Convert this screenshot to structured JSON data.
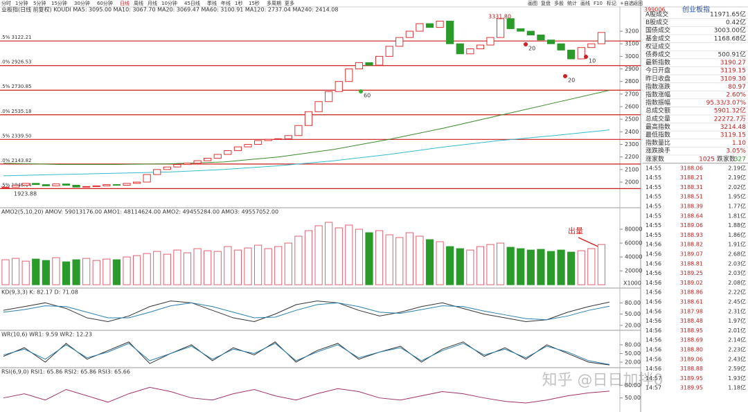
{
  "toolbar": {
    "left": [
      "分时",
      "1分钟",
      "5分钟",
      "15分钟",
      "30分钟",
      "60分钟",
      "日线",
      "周线",
      "月线",
      "10分钟",
      "45日线",
      "季线",
      "年线",
      "1秒",
      "15秒",
      "多周期",
      "更多"
    ],
    "right": [
      "画图",
      "复盘",
      "多股",
      "统计",
      "画线",
      "F10",
      "标记",
      "+自选",
      "返回"
    ]
  },
  "main": {
    "header": "业板指(日线 前复权) KOUDI MA5: 3095.00 MA10: 3067.70 MA20: 3069.47 MA60: 3100.91 MA120: 2737.04 MA240: 2414.08",
    "ylim": [
      1807,
      3338
    ],
    "yticks": [
      2000,
      2100,
      2200,
      2300,
      2400,
      2500,
      2600,
      2700,
      2800,
      2900,
      3000,
      3100,
      3200
    ],
    "fib": [
      {
        "label": ".5% 3122.21",
        "value": 3122.21
      },
      {
        "label": ".0% 2926.53",
        "value": 2926.53
      },
      {
        "label": ".5% 2730.85",
        "value": 2730.85
      },
      {
        "label": ".0% 2535.18",
        "value": 2535.18
      },
      {
        "label": ".5% 2339.50",
        "value": 2339.5
      },
      {
        "label": ".0% 2143.82",
        "value": 2143.82
      },
      {
        "label": ".5% 1948.14",
        "value": 1948.14
      }
    ],
    "closes": [
      1960,
      1975,
      1990,
      1980,
      1970,
      1985,
      1975,
      1960,
      1965,
      1970,
      1980,
      1975,
      1990,
      2000,
      2060,
      2100,
      2120,
      2140,
      2150,
      2170,
      2190,
      2220,
      2250,
      2280,
      2300,
      2330,
      2340,
      2345,
      2370,
      2450,
      2560,
      2640,
      2720,
      2800,
      2900,
      2950,
      2930,
      3000,
      3080,
      3150,
      3200,
      3260,
      3230,
      3280,
      3100,
      3020,
      3060,
      3090,
      3150,
      3300,
      3220,
      3200,
      3170,
      3130,
      3100,
      3050,
      2980,
      3070,
      3100,
      3190
    ],
    "ma_lines": [
      {
        "color": "#3a8a2a",
        "values": [
          2150,
          2140,
          2140,
          2145,
          2160,
          2200,
          2260,
          2340,
          2430,
          2530,
          2630,
          2730
        ]
      },
      {
        "color": "#33bbcc",
        "values": [
          2050,
          2060,
          2070,
          2080,
          2100,
          2130,
          2170,
          2220,
          2280,
          2330,
          2370,
          2415
        ]
      }
    ],
    "high_label": "3331.80",
    "low_label": "1923.88",
    "marks": [
      "60",
      "20",
      "20",
      "10"
    ]
  },
  "volume": {
    "header": "AMO2(5,10,20) AMOV: 59013176.00 AMO1: 48114624.00 AMO2: 49455284.00 AMO3: 49557052.00",
    "unit": "X1000",
    "note": "出量",
    "ylim": [
      -3800,
      99000
    ],
    "yticks": [
      20000,
      40000,
      60000,
      80000
    ],
    "values": [
      36000,
      38000,
      34000,
      37000,
      35000,
      39000,
      33000,
      36000,
      38000,
      35000,
      37000,
      36000,
      40000,
      42000,
      45000,
      48000,
      44000,
      50000,
      46000,
      52000,
      49000,
      48000,
      55000,
      50000,
      53000,
      57000,
      52000,
      55000,
      60000,
      70000,
      78000,
      85000,
      90000,
      82000,
      86000,
      80000,
      75000,
      78000,
      72000,
      68000,
      75000,
      70000,
      65000,
      62000,
      55000,
      52000,
      50000,
      55000,
      58000,
      60000,
      54000,
      52000,
      50000,
      51000,
      48000,
      50000,
      47000,
      49000,
      52000,
      58000
    ]
  },
  "indicators": [
    {
      "header": "KD(9,3,3) K: 82.17 D: 71.08",
      "ylim": [
        8.75,
        113.75
      ],
      "yticks": [
        {
          "value": 20,
          "label": "20.00"
        },
        {
          "value": 50,
          "label": "50.00"
        },
        {
          "value": 80,
          "label": "80.00"
        }
      ],
      "lines": [
        {
          "color": "#333333",
          "values": [
            60,
            70,
            80,
            65,
            40,
            30,
            45,
            70,
            85,
            80,
            60,
            40,
            30,
            50,
            75,
            85,
            80,
            60,
            45,
            55,
            70,
            80,
            65,
            50,
            40,
            30,
            35,
            55,
            70,
            82
          ]
        },
        {
          "color": "#2a7fb0",
          "values": [
            55,
            62,
            72,
            70,
            55,
            40,
            40,
            55,
            72,
            80,
            70,
            55,
            40,
            42,
            60,
            75,
            80,
            70,
            55,
            52,
            62,
            72,
            70,
            58,
            48,
            38,
            35,
            45,
            60,
            71
          ]
        }
      ]
    },
    {
      "header": "WR(10,6) WR1: 9.59 WR2: 12.23",
      "ylim": [
        3.2,
        123
      ],
      "yticks": [
        {
          "value": 20,
          "label": "20.00"
        },
        {
          "value": 50,
          "label": "50.00"
        },
        {
          "value": 80,
          "label": "80.00"
        }
      ],
      "lines": [
        {
          "color": "#333333",
          "values": [
            40,
            70,
            20,
            85,
            30,
            60,
            90,
            15,
            50,
            80,
            25,
            70,
            45,
            90,
            20,
            60,
            85,
            30,
            55,
            75,
            20,
            65,
            90,
            40,
            70,
            30,
            80,
            50,
            20,
            10
          ]
        },
        {
          "color": "#2a7fb0",
          "values": [
            45,
            65,
            30,
            80,
            35,
            55,
            85,
            25,
            50,
            75,
            30,
            65,
            50,
            85,
            25,
            55,
            80,
            35,
            55,
            70,
            25,
            60,
            85,
            45,
            65,
            35,
            75,
            55,
            25,
            12
          ]
        }
      ]
    },
    {
      "header": "RSI(6,9,0) RSI1: 65.86 RSI2: 65.86 RSI3: 65.66",
      "ylim": [
        16.7,
        116.7
      ],
      "yticks": [
        {
          "value": 50,
          "label": "50.00"
        },
        {
          "value": 80,
          "label": "80.00"
        }
      ],
      "lines": [
        {
          "color": "#a0306a",
          "values": [
            50,
            60,
            45,
            70,
            55,
            40,
            60,
            75,
            65,
            50,
            45,
            60,
            70,
            55,
            45,
            60,
            72,
            65,
            50,
            45,
            55,
            65,
            60,
            50,
            42,
            38,
            45,
            55,
            62,
            66
          ]
        }
      ]
    }
  ],
  "quote": {
    "code": "399006",
    "name": "创业板指",
    "rows": [
      [
        "A股成交",
        "11971.65亿"
      ],
      [
        "B股成交",
        "0.42亿"
      ],
      [
        "国债成交",
        "3003.00亿"
      ],
      [
        "基金成交",
        "1168.68亿"
      ],
      [
        "权证成交",
        ""
      ],
      [
        "债券成交",
        "500.91亿"
      ],
      [
        "最新指数",
        "3190.27"
      ],
      [
        "今日开盘",
        "3119.15"
      ],
      [
        "昨日收盘",
        "3109.30"
      ],
      [
        "指数涨跌",
        "80.97"
      ],
      [
        "指数涨幅",
        "2.60%"
      ],
      [
        "指数振幅",
        "95.33/3.07%"
      ],
      [
        "总成交额",
        "5901.32亿"
      ],
      [
        "总成交量",
        "22272.7万"
      ],
      [
        "最高指数",
        "3214.48"
      ],
      [
        "最低指数",
        "3119.15"
      ],
      [
        "指数量比",
        "1.10"
      ],
      [
        "涨跌换手",
        "3.05%"
      ]
    ],
    "breadth": [
      "涨家数",
      "1025",
      "跌家数",
      "327"
    ],
    "ticks": [
      [
        "14:55",
        "3188.06",
        "2.19亿"
      ],
      [
        "14:55",
        "3188.21",
        "2.19亿"
      ],
      [
        "14:55",
        "3188.31",
        "2.02亿"
      ],
      [
        "14:55",
        "3188.51",
        "1.95亿"
      ],
      [
        "14:55",
        "3188.39",
        "1.77亿"
      ],
      [
        "14:55",
        "3188.64",
        "1.81亿"
      ],
      [
        "14:55",
        "3189.06",
        "1.88亿"
      ],
      [
        "14:55",
        "3188.93",
        "1.86亿"
      ],
      [
        "14:56",
        "3188.82",
        "1.91亿"
      ],
      [
        "14:56",
        "3189.07",
        "2.68亿"
      ],
      [
        "14:56",
        "3188.81",
        "2.03亿"
      ],
      [
        "14:56",
        "3189.25",
        "2.03亿"
      ],
      [
        "14:56",
        "3189.02",
        "2.08亿"
      ],
      [
        "14:56",
        "3188.86",
        "2.22亿"
      ],
      [
        "14:56",
        "3188.61",
        "2.45亿"
      ],
      [
        "14:56",
        "3187.98",
        "2.31亿"
      ],
      [
        "14:56",
        "3188.48",
        "1.97亿"
      ],
      [
        "14:56",
        "3188.95",
        "2.01亿"
      ],
      [
        "14:56",
        "3188.69",
        "2.14亿"
      ],
      [
        "14:56",
        "3188.80",
        "2.23亿"
      ],
      [
        "14:56",
        "3189.06",
        "2.43亿"
      ],
      [
        "14:56",
        "3188.88",
        "2.59亿"
      ],
      [
        "14:57",
        "3189.95",
        "1.93亿"
      ],
      [
        "14:57",
        "3189.95",
        "1.18亿"
      ]
    ]
  },
  "watermark": "知乎 @日日加拌0"
}
